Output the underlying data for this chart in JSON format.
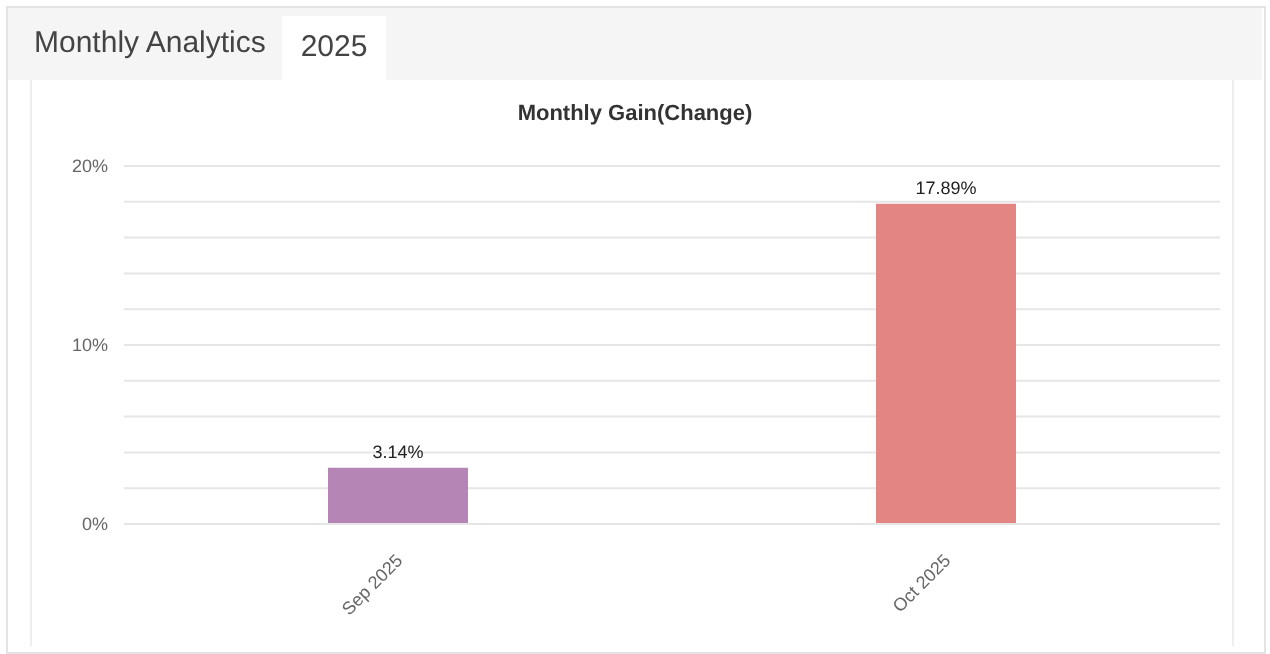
{
  "chart_data": {
    "type": "bar",
    "title": "Monthly Gain(Change)",
    "annotations": [
      "Monthly Analytics",
      "2025"
    ],
    "categories": [
      "Sep 2025",
      "Oct 2025"
    ],
    "values": [
      3.14,
      17.89
    ],
    "colors": [
      "#b586b5",
      "#e38683"
    ],
    "value_labels": [
      "3.14%",
      "17.89%"
    ],
    "ylim": [
      0,
      20
    ],
    "yticks": [
      {
        "value": 0,
        "label": "0%"
      },
      {
        "value": 2,
        "label": null
      },
      {
        "value": 4,
        "label": null
      },
      {
        "value": 6,
        "label": null
      },
      {
        "value": 8,
        "label": null
      },
      {
        "value": 10,
        "label": "10%"
      },
      {
        "value": 12,
        "label": null
      },
      {
        "value": 14,
        "label": null
      },
      {
        "value": 16,
        "label": null
      },
      {
        "value": 18,
        "label": null
      },
      {
        "value": 20,
        "label": "20%"
      }
    ],
    "grid": "y"
  }
}
